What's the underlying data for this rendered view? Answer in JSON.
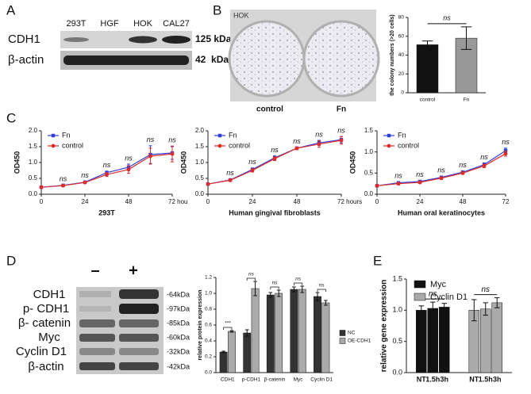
{
  "panels": {
    "labels": [
      "A",
      "B",
      "C",
      "D",
      "E"
    ]
  },
  "blot_a": {
    "lanes": [
      "293T",
      "HGF",
      "HOK",
      "CAL27"
    ],
    "rows": [
      "CDH1",
      "β-actin"
    ],
    "sizes": [
      "125 kDa",
      "42  kDa"
    ]
  },
  "colony": {
    "cell_line": "HOK",
    "dishes": [
      "control",
      "Fn"
    ]
  },
  "blot_d": {
    "lanes": [
      "–",
      "+"
    ],
    "rows": [
      "CDH1",
      "p- CDH1",
      "β- catenin",
      "Myc",
      "Cyclin D1",
      "β-actin"
    ],
    "sizes": [
      "-64kDa",
      "-97kDa",
      "-85kDa",
      "-60kDa",
      "-32kDa",
      "-42kDa"
    ]
  },
  "chart_data": [
    {
      "type": "bar",
      "ylabel": "the colony numbers (>20 cells)",
      "categories": [
        "control",
        "Fn"
      ],
      "values": [
        51,
        58
      ],
      "errors": [
        4,
        12
      ],
      "colors": [
        "#111111",
        "#999999"
      ],
      "ylim": [
        0,
        80
      ],
      "yticks": [
        0,
        20,
        40,
        60,
        80
      ],
      "significance": "ns"
    },
    {
      "type": "line",
      "xlabel": "293T",
      "ylabel": "OD450",
      "x": [
        0,
        12,
        24,
        36,
        48,
        60,
        72
      ],
      "series": [
        {
          "name": "Fn",
          "color": "#2f3fd8",
          "values": [
            0.22,
            0.28,
            0.38,
            0.68,
            0.85,
            1.25,
            1.3
          ],
          "errors": [
            0.02,
            0.02,
            0.03,
            0.05,
            0.1,
            0.28,
            0.2
          ]
        },
        {
          "name": "control",
          "color": "#e02a2a",
          "values": [
            0.22,
            0.27,
            0.37,
            0.62,
            0.78,
            1.2,
            1.27
          ],
          "errors": [
            0.02,
            0.02,
            0.03,
            0.06,
            0.12,
            0.25,
            0.25
          ]
        }
      ],
      "xlim": [
        0,
        72
      ],
      "xticks": [
        0,
        24,
        48,
        {
          "value": 72,
          "label": "72 hou"
        }
      ],
      "ylim": [
        0,
        2
      ],
      "yticks": [
        {
          "value": 0,
          "label": "0.0"
        },
        0.5,
        {
          "value": 1,
          "label": "1.0"
        },
        1.5,
        {
          "value": 2,
          "label": "2.0"
        }
      ],
      "point_labels": [
        null,
        "ns",
        "ns",
        "ns",
        "ns",
        "ns",
        "ns"
      ],
      "legend": "upper left"
    },
    {
      "type": "line",
      "xlabel": "Human gingival fibroblasts",
      "ylabel": "OD450",
      "x": [
        0,
        12,
        24,
        36,
        48,
        60,
        72
      ],
      "series": [
        {
          "name": "Fn",
          "color": "#2f3fd8",
          "values": [
            0.32,
            0.45,
            0.78,
            1.15,
            1.45,
            1.62,
            1.72
          ],
          "errors": [
            0.02,
            0.03,
            0.05,
            0.06,
            0.04,
            0.08,
            0.1
          ]
        },
        {
          "name": "control",
          "color": "#e02a2a",
          "values": [
            0.32,
            0.44,
            0.75,
            1.12,
            1.45,
            1.58,
            1.7
          ],
          "errors": [
            0.02,
            0.03,
            0.05,
            0.06,
            0.04,
            0.1,
            0.12
          ]
        }
      ],
      "xlim": [
        0,
        72
      ],
      "xticks": [
        0,
        24,
        48,
        {
          "value": 72,
          "label": "72 hours"
        }
      ],
      "ylim": [
        0,
        2
      ],
      "yticks": [
        {
          "value": 0,
          "label": "0.0"
        },
        0.5,
        {
          "value": 1,
          "label": "1.0"
        },
        1.5,
        {
          "value": 2,
          "label": "2.0"
        }
      ],
      "point_labels": [
        null,
        "ns",
        "ns",
        "ns",
        "ns",
        "ns",
        "ns"
      ],
      "legend": "upper left"
    },
    {
      "type": "line",
      "xlabel": "Human oral keratinocytes",
      "ylabel": "OD450",
      "x": [
        0,
        12,
        24,
        36,
        48,
        60,
        72
      ],
      "series": [
        {
          "name": "Fn",
          "color": "#2f3fd8",
          "values": [
            0.2,
            0.27,
            0.3,
            0.4,
            0.52,
            0.7,
            1.03
          ],
          "errors": [
            0.02,
            0.03,
            0.03,
            0.03,
            0.03,
            0.04,
            0.06
          ]
        },
        {
          "name": "control",
          "color": "#e02a2a",
          "values": [
            0.2,
            0.25,
            0.28,
            0.38,
            0.5,
            0.67,
            0.96
          ],
          "errors": [
            0.02,
            0.03,
            0.03,
            0.03,
            0.03,
            0.04,
            0.06
          ]
        }
      ],
      "xlim": [
        0,
        72
      ],
      "xticks": [
        0,
        24,
        48,
        72
      ],
      "ylim": [
        0,
        1.5
      ],
      "yticks": [
        {
          "value": 0,
          "label": "0.0"
        },
        0.5,
        {
          "value": 1,
          "label": "1.0"
        },
        1.5
      ],
      "point_labels": [
        null,
        "ns",
        "ns",
        "ns",
        "ns",
        "ns",
        "ns"
      ],
      "legend": "upper left"
    },
    {
      "type": "bar",
      "ylabel": "relative protein expression",
      "categories": [
        "CDH1",
        "p-CDH1",
        "β-catenin",
        "Myc",
        "Cyclin D1"
      ],
      "series": [
        {
          "name": "NC",
          "color": "#333333",
          "values": [
            0.26,
            0.5,
            0.98,
            1.05,
            0.96
          ],
          "errors": [
            0.01,
            0.04,
            0.03,
            0.03,
            0.05
          ]
        },
        {
          "name": "OE-CDH1",
          "color": "#aaaaaa",
          "values": [
            0.52,
            1.06,
            1.0,
            1.05,
            0.88
          ],
          "errors": [
            0.01,
            0.09,
            0.04,
            0.04,
            0.03
          ]
        }
      ],
      "ylim": [
        0,
        1.2
      ],
      "yticks": [
        {
          "value": 0,
          "label": "0.0"
        },
        0.2,
        0.4,
        0.6,
        0.8,
        {
          "value": 1,
          "label": "1.0"
        },
        1.2
      ],
      "significance": [
        "***",
        "ns",
        "ns",
        "ns",
        "ns"
      ],
      "legend": "right"
    },
    {
      "type": "bar",
      "ylabel": "relative gene expression",
      "categories": [
        "NT",
        "1.5h",
        "3h"
      ],
      "series": [
        {
          "name": "Myc",
          "color": "#111111",
          "values": [
            1.0,
            1.03,
            1.05
          ],
          "errors": [
            0.07,
            0.1,
            0.06
          ]
        },
        {
          "name": "Cyclin D1",
          "color": "#aaaaaa",
          "values": [
            1.0,
            1.02,
            1.12
          ],
          "errors": [
            0.17,
            0.1,
            0.08
          ]
        }
      ],
      "ylim": [
        0,
        1.5
      ],
      "yticks": [
        {
          "value": 0,
          "label": "0.0"
        },
        0.5,
        {
          "value": 1,
          "label": "1.0"
        },
        1.5
      ],
      "significance": [
        "ns",
        "ns"
      ],
      "legend": "upper left"
    }
  ]
}
